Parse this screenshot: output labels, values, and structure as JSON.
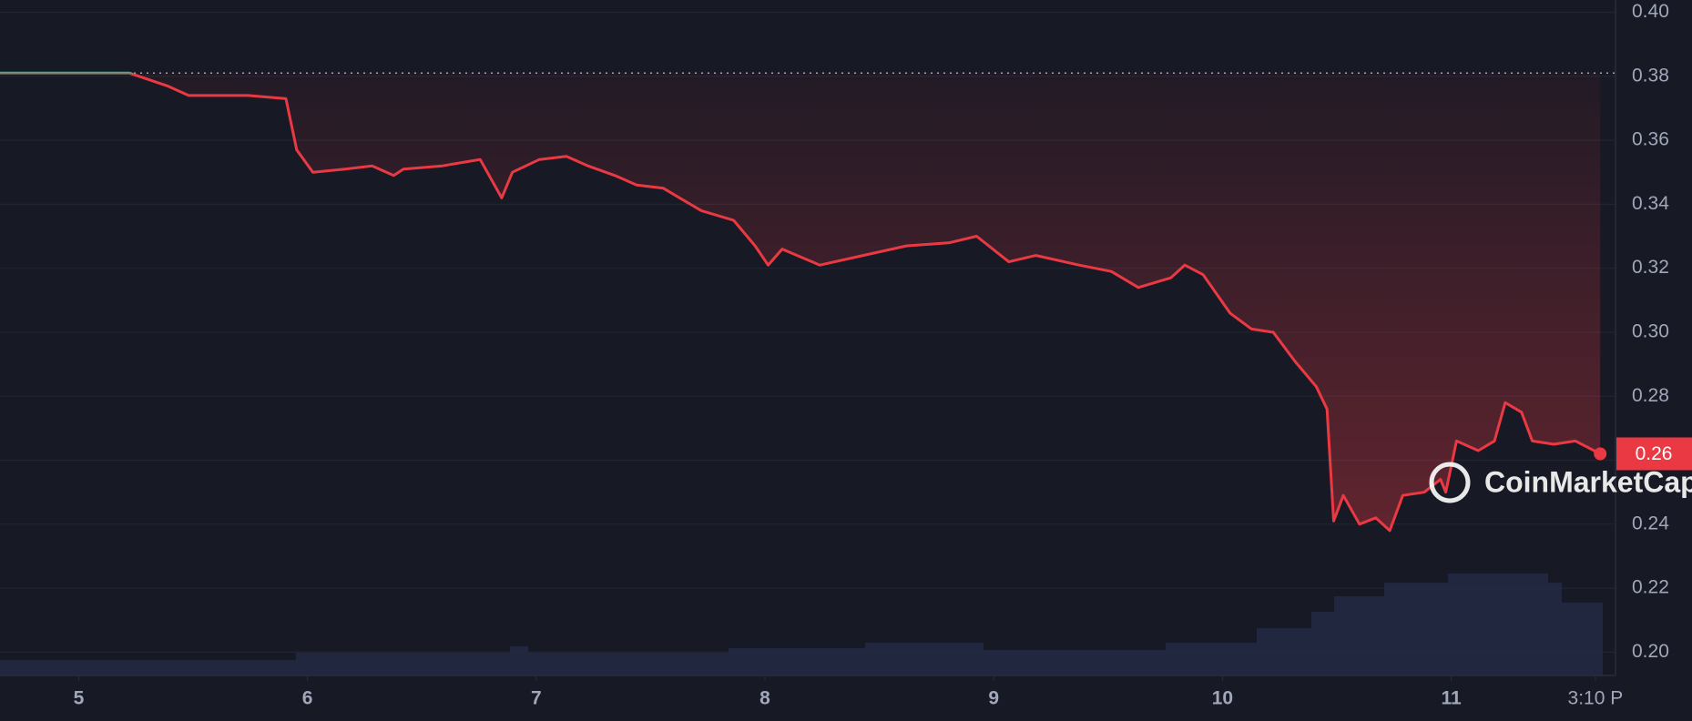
{
  "chart_data": {
    "type": "line",
    "x": [
      4.656,
      5.222,
      5.387,
      5.481,
      5.74,
      5.906,
      5.953,
      6.024,
      6.165,
      6.283,
      6.377,
      6.42,
      6.59,
      6.755,
      6.849,
      6.896,
      7.014,
      7.132,
      7.226,
      7.344,
      7.439,
      7.556,
      7.627,
      7.722,
      7.863,
      7.957,
      8.014,
      8.075,
      8.24,
      8.429,
      8.618,
      8.807,
      8.925,
      9.066,
      9.184,
      9.373,
      9.514,
      9.632,
      9.774,
      9.835,
      9.915,
      10.033,
      10.127,
      10.222,
      10.316,
      10.41,
      10.457,
      10.486,
      10.528,
      10.599,
      10.67,
      10.731,
      10.788,
      10.882,
      10.953,
      10.976,
      11.023,
      11.118,
      11.189,
      11.236,
      11.307,
      11.354,
      11.448,
      11.543,
      11.651
    ],
    "series": [
      {
        "color": "#ea3943",
        "up_color": "#16c784",
        "values": [
          0.381,
          0.381,
          0.377,
          0.374,
          0.374,
          0.373,
          0.357,
          0.35,
          0.351,
          0.352,
          0.349,
          0.351,
          0.352,
          0.354,
          0.342,
          0.35,
          0.354,
          0.355,
          0.352,
          0.349,
          0.346,
          0.345,
          0.342,
          0.338,
          0.335,
          0.327,
          0.321,
          0.326,
          0.321,
          0.324,
          0.327,
          0.328,
          0.33,
          0.322,
          0.324,
          0.321,
          0.319,
          0.314,
          0.317,
          0.321,
          0.318,
          0.306,
          0.301,
          0.3,
          0.291,
          0.283,
          0.276,
          0.241,
          0.249,
          0.24,
          0.242,
          0.238,
          0.249,
          0.25,
          0.254,
          0.25,
          0.266,
          0.263,
          0.266,
          0.278,
          0.275,
          0.266,
          0.265,
          0.266,
          0.262
        ]
      }
    ],
    "baseline": 0.381,
    "current_price": {
      "value": 0.262,
      "label": "0.26"
    },
    "xlim": [
      4.656,
      11.71
    ],
    "xticks": [
      5,
      6,
      7,
      8,
      9,
      10,
      11,
      {
        "value": 11.63,
        "label": "3:10 P"
      }
    ],
    "ylim": [
      0.193,
      0.401
    ],
    "yticks": [
      {
        "value": 0.2,
        "label": "0.20"
      },
      {
        "value": 0.22,
        "label": "0.22"
      },
      {
        "value": 0.24,
        "label": "0.24"
      },
      {
        "value": 0.26,
        "label": "0.26"
      },
      {
        "value": 0.28,
        "label": "0.28"
      },
      {
        "value": 0.3,
        "label": "0.30"
      },
      {
        "value": 0.32,
        "label": "0.32"
      },
      {
        "value": 0.34,
        "label": "0.34"
      },
      {
        "value": 0.36,
        "label": "0.36"
      },
      {
        "value": 0.38,
        "label": "0.38"
      },
      {
        "value": 0.4,
        "label": "0.40"
      }
    ],
    "grid": true
  },
  "watermark": "CoinMarketCap"
}
